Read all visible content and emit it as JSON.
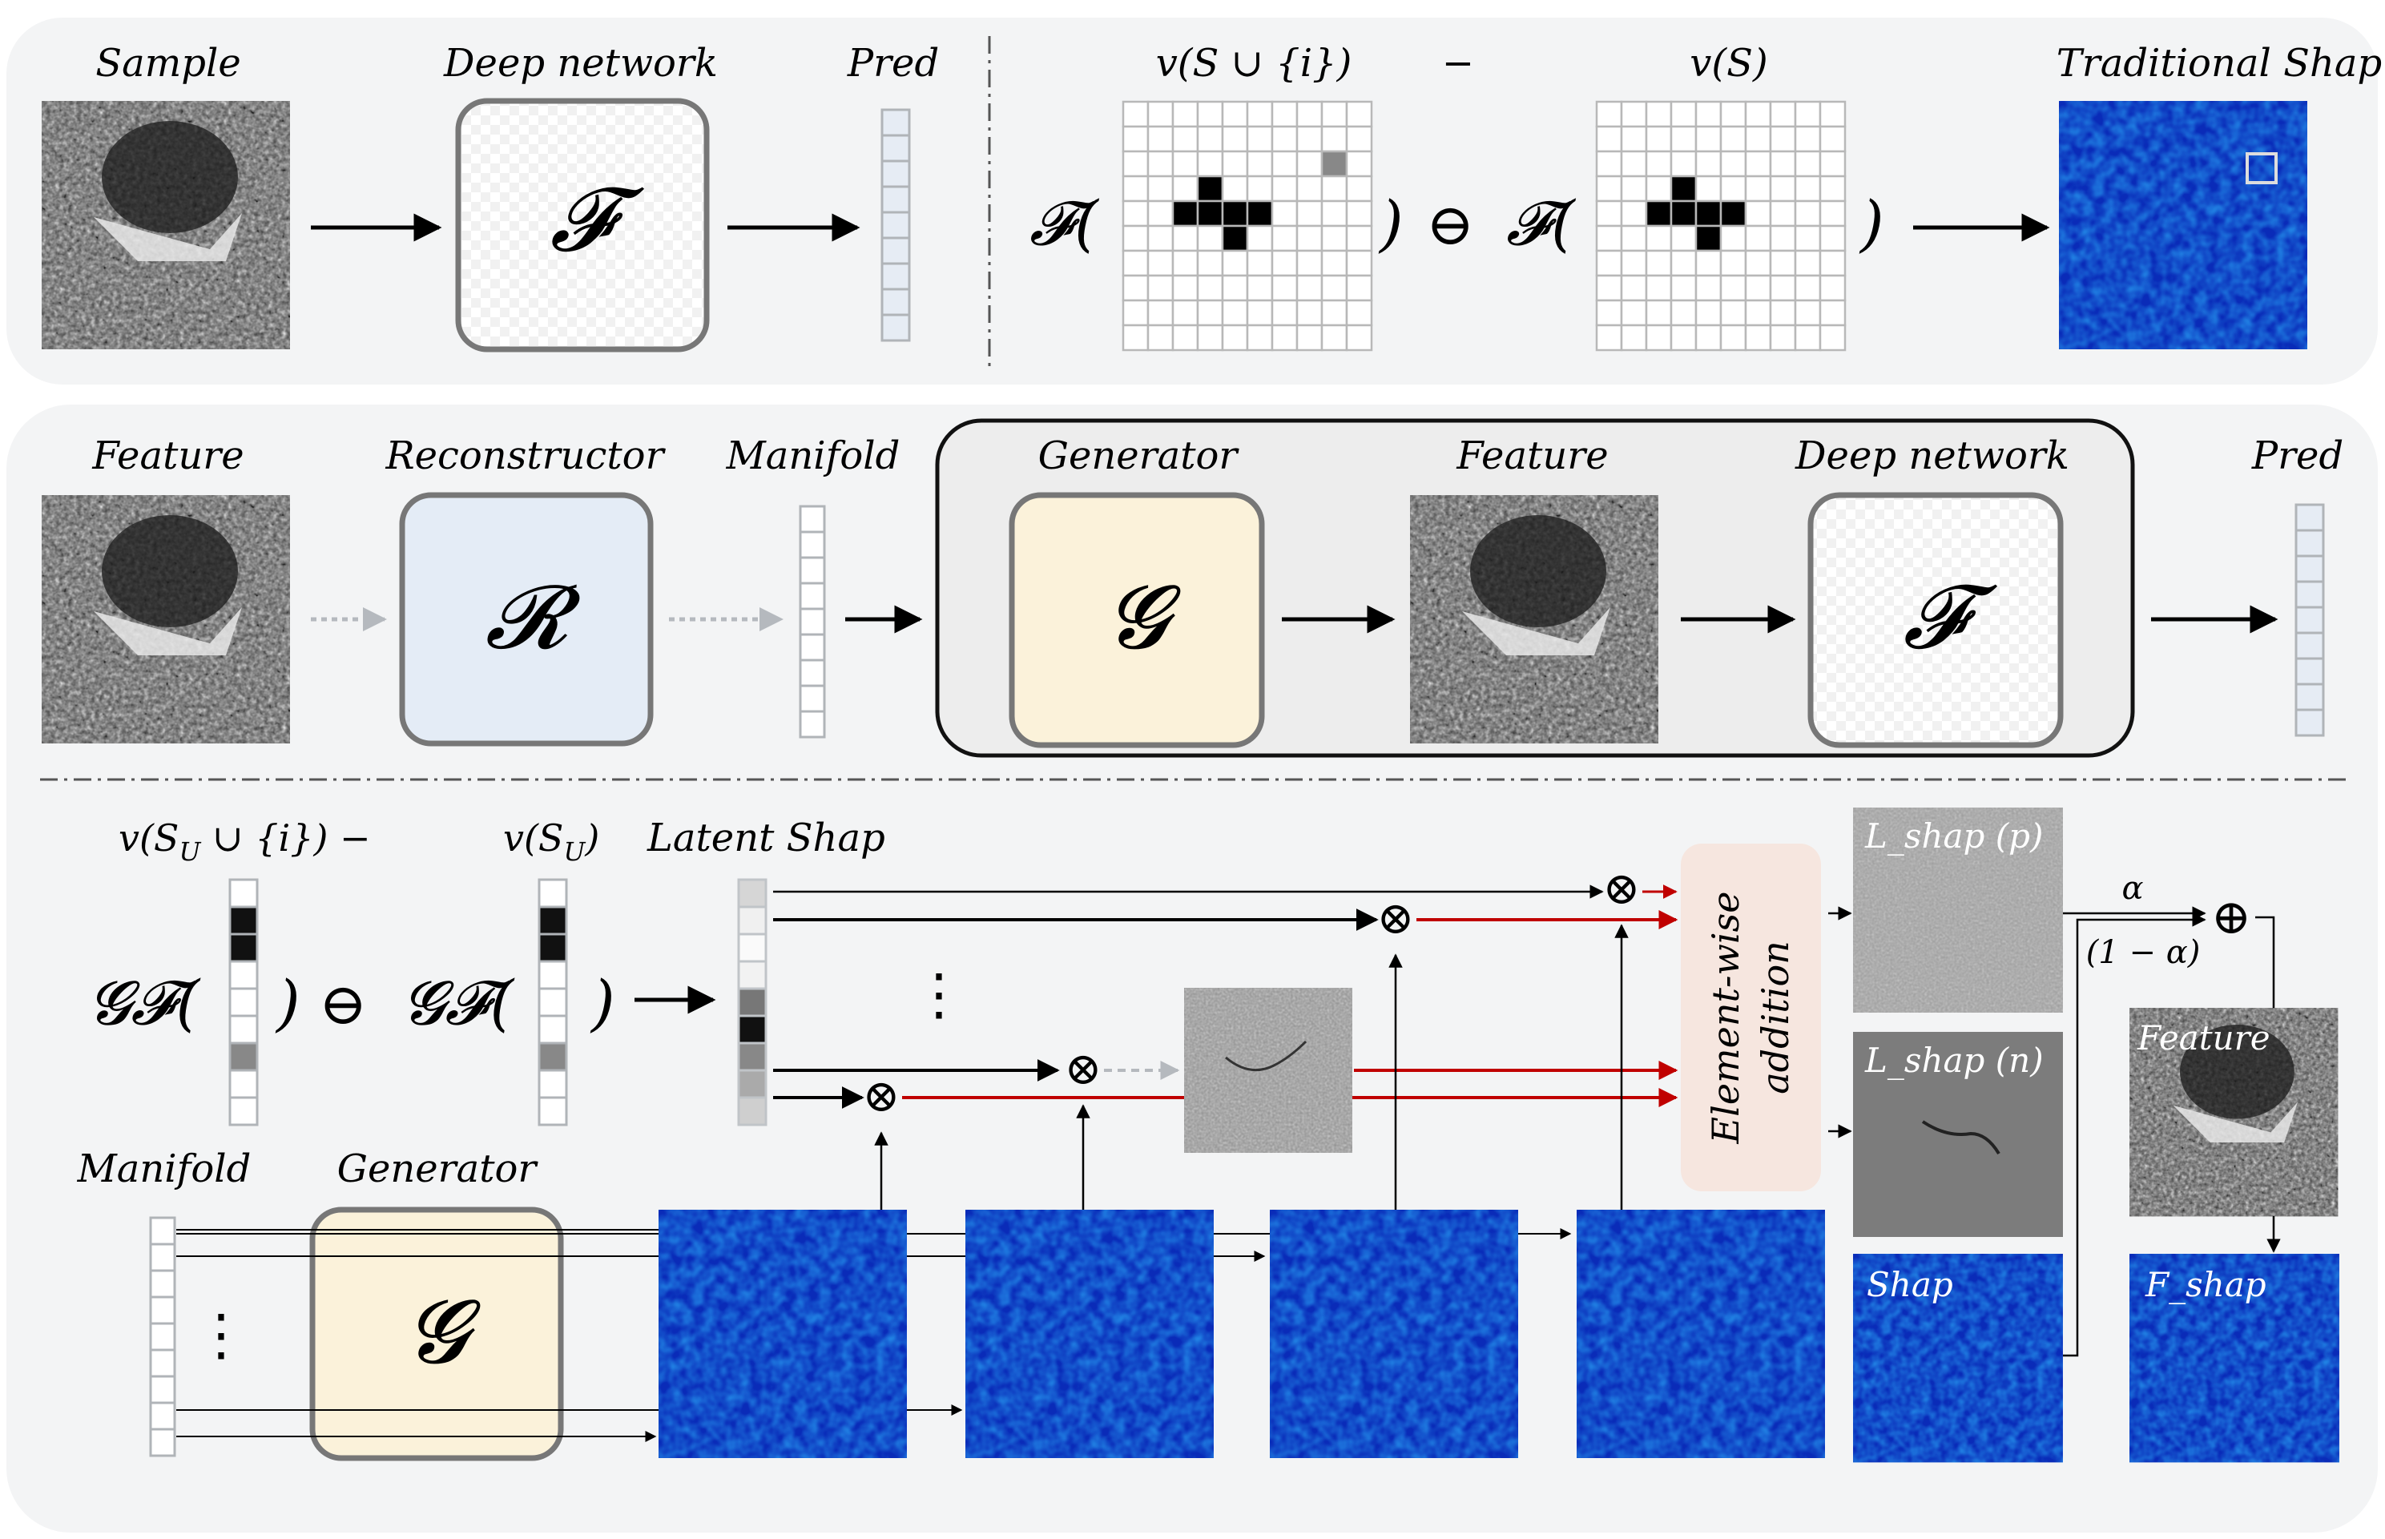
{
  "top": {
    "sample_label": "Sample",
    "network_label": "Deep network",
    "network_symbol": "𝓕",
    "pred_label": "Pred",
    "v_with_i": "v(S ∪ {i})",
    "minus": "−",
    "v_without": "v(S)",
    "f_open": "𝓕(",
    "close_paren": ")",
    "ominus": "⊖",
    "traditional_label": "Traditional Shap"
  },
  "middle": {
    "feature_label": "Feature",
    "reconstructor_label": "Reconstructor",
    "reconstructor_symbol": "𝓡",
    "manifold_label": "Manifold",
    "generator_label": "Generator",
    "generator_symbol": "𝓖",
    "feature2_label": "Feature",
    "network_label": "Deep network",
    "network_symbol": "𝓕",
    "pred_label": "Pred"
  },
  "bottom": {
    "v_su_i": "v(S",
    "v_su_i_sub": "U",
    "v_su_i_rest": " ∪ {i}) −",
    "v_su": "v(S",
    "v_su_sub": "U",
    "v_su_rest": ")",
    "latent_label": "Latent Shap",
    "gf_open": "𝓖𝓕(",
    "close_paren": ")",
    "ominus": "⊖",
    "dots": "⋮",
    "otimes": "⊗",
    "oplus": "⊕",
    "element_wise": "Element-wise",
    "addition": "addition",
    "lshap_p": "L_shap (p)",
    "lshap_n": "L_shap (n)",
    "shap": "Shap",
    "alpha": "α",
    "one_minus_alpha": "(1 − α)",
    "feature_label": "Feature",
    "fshap": "F_shap",
    "manifold_label": "Manifold",
    "generator_label": "Generator",
    "generator_symbol": "𝓖"
  },
  "colors": {
    "panel_bg": "#f3f4f5",
    "reconstructor_fill": "#e4ecf6",
    "generator_fill": "#fbf2da",
    "elementwise_fill": "#f6e6df",
    "pred_fill": "#e6ecf4",
    "red_arrow": "#c00000",
    "heat_bg": "#0a2bb8"
  }
}
